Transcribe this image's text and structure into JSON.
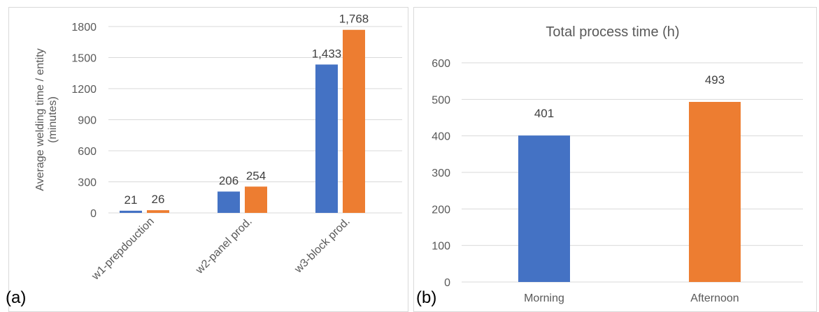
{
  "panels": [
    {
      "label": "(a)",
      "chart_data": {
        "type": "bar",
        "title": "",
        "xlabel": "",
        "ylabel_lines": [
          "Average welding time / entity",
          "(minutes)"
        ],
        "ylim": [
          0,
          1800
        ],
        "yticks": [
          "0",
          "300",
          "600",
          "900",
          "1200",
          "1500",
          "1800"
        ],
        "categories": [
          "w1-prepdouction",
          "w2-panel prod.",
          "w3-block prod."
        ],
        "series": [
          {
            "color": "#4472c4",
            "values": [
              21,
              206,
              1433
            ],
            "labels": [
              "21",
              "206",
              "1,433"
            ]
          },
          {
            "color": "#ed7d31",
            "values": [
              26,
              254,
              1768
            ],
            "labels": [
              "26",
              "254",
              "1,768"
            ]
          }
        ],
        "grid": true,
        "legend": "none"
      }
    },
    {
      "label": "(b)",
      "chart_data": {
        "type": "bar",
        "title": "Total process time (h)",
        "xlabel": "",
        "ylabel": "",
        "ylim": [
          0,
          600
        ],
        "yticks": [
          "0",
          "100",
          "200",
          "300",
          "400",
          "500",
          "600"
        ],
        "categories": [
          "Morning",
          "Afternoon"
        ],
        "values": [
          401,
          493
        ],
        "labels": [
          "401",
          "493"
        ],
        "colors": [
          "#4472c4",
          "#ed7d31"
        ],
        "grid": true,
        "legend": "none"
      }
    }
  ]
}
